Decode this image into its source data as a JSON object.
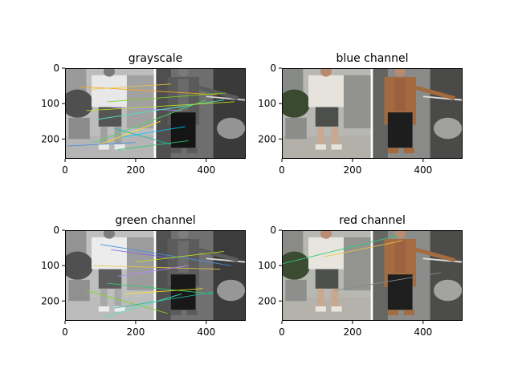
{
  "figure": {
    "panels": [
      {
        "title": "grayscale",
        "image_type": "grayscale",
        "matches": [
          {
            "x1": 40,
            "y1": 52,
            "x2": 430,
            "y2": 75,
            "color": "#f5a623"
          },
          {
            "x1": 70,
            "y1": 60,
            "x2": 300,
            "y2": 45,
            "color": "#e8c547"
          },
          {
            "x1": 120,
            "y1": 95,
            "x2": 455,
            "y2": 70,
            "color": "#7ed321"
          },
          {
            "x1": 130,
            "y1": 110,
            "x2": 330,
            "y2": 120,
            "color": "#b388ff"
          },
          {
            "x1": 90,
            "y1": 145,
            "x2": 450,
            "y2": 90,
            "color": "#50e3c2"
          },
          {
            "x1": 80,
            "y1": 210,
            "x2": 400,
            "y2": 90,
            "color": "#4cd964"
          },
          {
            "x1": 100,
            "y1": 215,
            "x2": 270,
            "y2": 150,
            "color": "#f8e71c"
          },
          {
            "x1": 5,
            "y1": 220,
            "x2": 200,
            "y2": 210,
            "color": "#4a90e2"
          },
          {
            "x1": 150,
            "y1": 230,
            "x2": 350,
            "y2": 205,
            "color": "#2ecc71"
          },
          {
            "x1": 60,
            "y1": 120,
            "x2": 480,
            "y2": 95,
            "color": "#c0e218"
          },
          {
            "x1": 140,
            "y1": 170,
            "x2": 300,
            "y2": 215,
            "color": "#1abc9c"
          },
          {
            "x1": 160,
            "y1": 195,
            "x2": 340,
            "y2": 165,
            "color": "#00c8ff"
          }
        ]
      },
      {
        "title": "blue channel",
        "image_type": "blue",
        "matches": []
      },
      {
        "title": "green channel",
        "image_type": "green",
        "matches": [
          {
            "x1": 100,
            "y1": 40,
            "x2": 470,
            "y2": 100,
            "color": "#4a90e2"
          },
          {
            "x1": 130,
            "y1": 55,
            "x2": 310,
            "y2": 80,
            "color": "#7b68ee"
          },
          {
            "x1": 80,
            "y1": 100,
            "x2": 440,
            "y2": 110,
            "color": "#e8c547"
          },
          {
            "x1": 150,
            "y1": 130,
            "x2": 350,
            "y2": 100,
            "color": "#b388ff"
          },
          {
            "x1": 120,
            "y1": 150,
            "x2": 420,
            "y2": 180,
            "color": "#2ecc71"
          },
          {
            "x1": 60,
            "y1": 170,
            "x2": 290,
            "y2": 235,
            "color": "#7ed321"
          },
          {
            "x1": 170,
            "y1": 180,
            "x2": 390,
            "y2": 165,
            "color": "#f8e71c"
          },
          {
            "x1": 140,
            "y1": 220,
            "x2": 420,
            "y2": 175,
            "color": "#1abc9c"
          },
          {
            "x1": 110,
            "y1": 245,
            "x2": 330,
            "y2": 180,
            "color": "#50e3c2"
          },
          {
            "x1": 200,
            "y1": 90,
            "x2": 450,
            "y2": 60,
            "color": "#c0e218"
          }
        ]
      },
      {
        "title": "red channel",
        "image_type": "red",
        "matches": [
          {
            "x1": 0,
            "y1": 95,
            "x2": 330,
            "y2": 15,
            "color": "#2ecc71"
          },
          {
            "x1": 120,
            "y1": 75,
            "x2": 340,
            "y2": 30,
            "color": "#e8c547"
          },
          {
            "x1": 150,
            "y1": 170,
            "x2": 450,
            "y2": 120,
            "color": "#7f8c8d"
          }
        ]
      }
    ]
  },
  "chart_data": [
    {
      "type": "image",
      "title": "grayscale",
      "xlim": [
        0,
        512
      ],
      "ylim": [
        256,
        0
      ],
      "xticks": [
        0,
        200,
        400
      ],
      "yticks": [
        0,
        100,
        200
      ]
    },
    {
      "type": "image",
      "title": "blue channel",
      "xlim": [
        0,
        512
      ],
      "ylim": [
        256,
        0
      ],
      "xticks": [
        0,
        200,
        400
      ],
      "yticks": [
        0,
        100,
        200
      ]
    },
    {
      "type": "image",
      "title": "green channel",
      "xlim": [
        0,
        512
      ],
      "ylim": [
        256,
        0
      ],
      "xticks": [
        0,
        200,
        400
      ],
      "yticks": [
        0,
        100,
        200
      ]
    },
    {
      "type": "image",
      "title": "red channel",
      "xlim": [
        0,
        512
      ],
      "ylim": [
        256,
        0
      ],
      "xticks": [
        0,
        200,
        400
      ],
      "yticks": [
        0,
        100,
        200
      ]
    }
  ]
}
